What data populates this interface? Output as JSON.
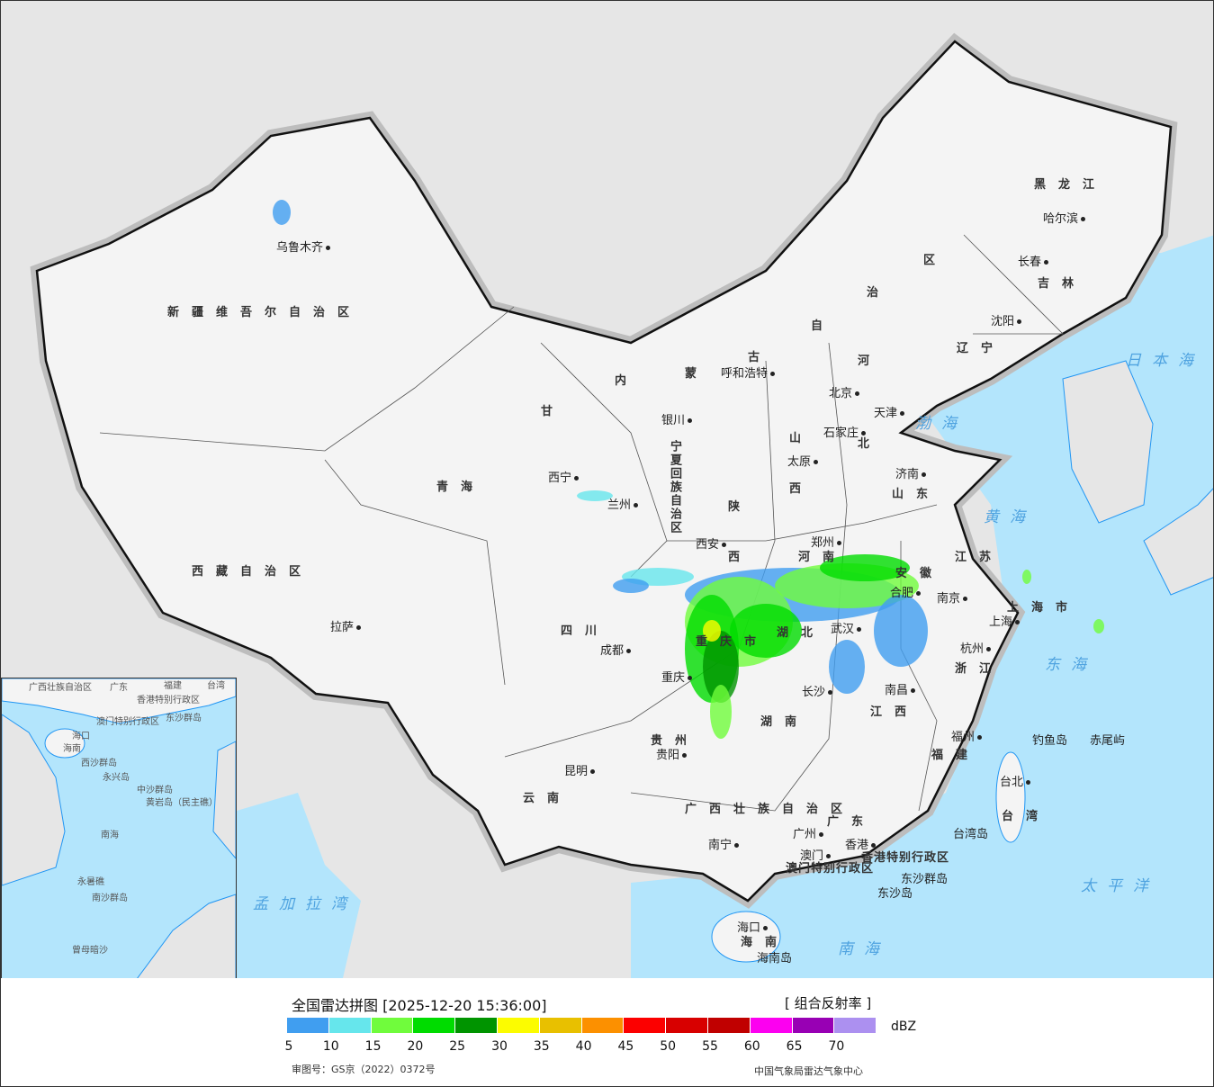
{
  "legend": {
    "title": "全国雷达拼图 [2025-12-20 15:36:00]",
    "product": "[ 组合反射率 ]",
    "unit": "dBZ",
    "colors": [
      "#409ef0",
      "#66e6ec",
      "#70fc3c",
      "#00dc00",
      "#009400",
      "#fcfc00",
      "#e8c000",
      "#fc9000",
      "#fc0000",
      "#d80000",
      "#c00000",
      "#fc00f0",
      "#9800b4",
      "#ac90f0"
    ],
    "ticks": [
      "5",
      "10",
      "15",
      "20",
      "25",
      "30",
      "35",
      "40",
      "45",
      "50",
      "55",
      "60",
      "65",
      "70"
    ],
    "approval_no": "审图号：GS京（2022）0372号",
    "source": "中国气象局雷达气象中心"
  },
  "colors": {
    "sea": "#b3e5fc",
    "land": "#f4f4f4",
    "foreign": "#e6e6e6",
    "border": "#111111"
  },
  "provinces": {
    "xinjiang": "新疆维吾尔自治区",
    "xizang": "西藏自治区",
    "qinghai": "青海",
    "gansu": "甘",
    "neimenggu_1": "内",
    "neimenggu_2": "蒙",
    "neimenggu_3": "古",
    "neimenggu_4": "自",
    "neimenggu_5": "治",
    "neimenggu_6": "区",
    "heilongjiang": "黑龙江",
    "jilin": "吉林",
    "liaoning": "辽宁",
    "hebei_1": "河",
    "hebei_2": "北",
    "shanxi_1": "山",
    "shanxi_2": "西",
    "shandong": "山东",
    "shaanxi_1": "陕",
    "shaanxi_2": "西",
    "henan": "河南",
    "sichuan": "四川",
    "chongqing": "重庆市",
    "hubei": "湖北",
    "hunan": "湖南",
    "jiangxi": "江西",
    "anhui": "安徽",
    "jiangsu": "江苏",
    "zhejiang": "浙江",
    "fujian": "福建",
    "guizhou": "贵州",
    "yunnan": "云南",
    "guangxi": "广西壮族自治区",
    "guangdong": "广东",
    "hainan": "海南",
    "taiwan": "台湾",
    "shanghai": "上海市",
    "ningxia": "宁夏回族自治区"
  },
  "cities": {
    "urumqi": "乌鲁木齐",
    "lhasa": "拉萨",
    "xining": "西宁",
    "lanzhou": "兰州",
    "yinchuan": "银川",
    "hohhot": "呼和浩特",
    "beijing": "北京",
    "tianjin": "天津",
    "shijiazhuang": "石家庄",
    "taiyuan": "太原",
    "jinan": "济南",
    "zhengzhou": "郑州",
    "xian": "西安",
    "chengdu": "成都",
    "chongqing": "重庆",
    "wuhan": "武汉",
    "hefei": "合肥",
    "nanjing": "南京",
    "shanghai": "上海",
    "hangzhou": "杭州",
    "nanchang": "南昌",
    "changsha": "长沙",
    "guiyang": "贵阳",
    "kunming": "昆明",
    "nanning": "南宁",
    "guangzhou": "广州",
    "hongkong": "香港",
    "macau": "澳门",
    "fuzhou": "福州",
    "taipei": "台北",
    "haikou": "海口",
    "shenyang": "沈阳",
    "changchun": "长春",
    "harbin": "哈尔滨"
  },
  "places": {
    "hk_sar": "香港特别行政区",
    "macau_sar": "澳门特别行政区",
    "dongsha_islands": "东沙群岛",
    "dongsha_island": "东沙岛",
    "taiwan_island": "台湾岛",
    "hainan_island": "海南岛",
    "diaoyu": "钓鱼岛",
    "chiwei": "赤尾屿"
  },
  "seas": {
    "bohai": "渤海",
    "huanghai": "黄海",
    "donghai": "东海",
    "nanhai": "南海",
    "taipingyang": "太平洋",
    "riben": "日本海",
    "mengjiala": "孟加拉湾"
  },
  "inset": {
    "labels": [
      "广西壮族自治区",
      "广东",
      "福建",
      "台湾",
      "香港特别行政区",
      "澳门特别行政区",
      "东沙群岛",
      "西沙群岛",
      "永兴岛",
      "中沙群岛",
      "黄岩岛（民主礁）",
      "南海",
      "永暑礁",
      "南沙群岛",
      "曾母暗沙",
      "海口",
      "海南"
    ]
  }
}
